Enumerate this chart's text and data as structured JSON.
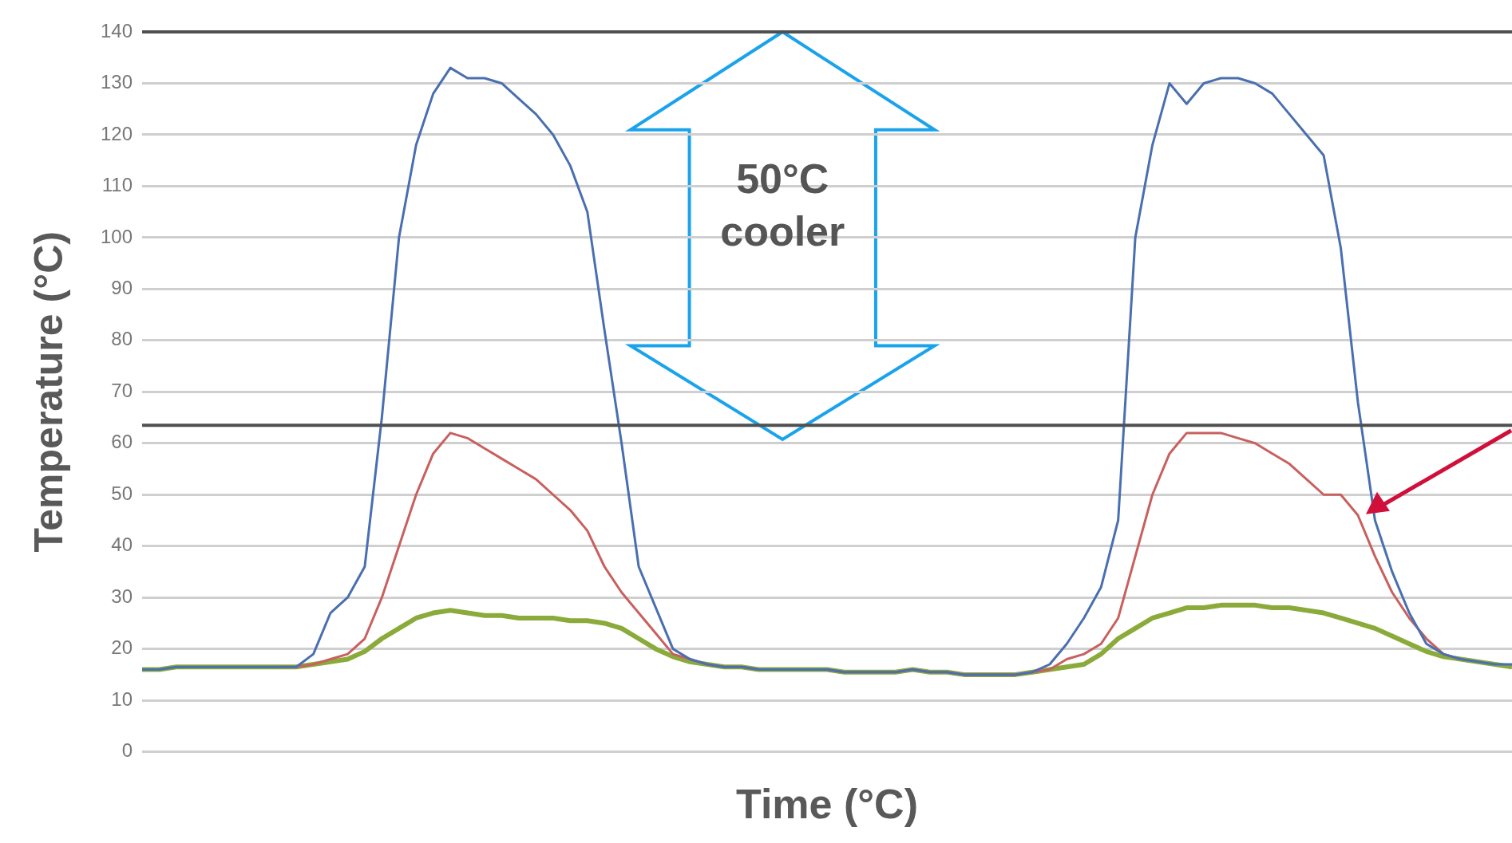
{
  "chart_data": {
    "type": "line",
    "xlabel": "Time (°C)",
    "ylabel": "Temperature (°C)",
    "categories": [
      null,
      null,
      null,
      null,
      null,
      null,
      null,
      null,
      null,
      null,
      null,
      null,
      null,
      null,
      null,
      null,
      null,
      null,
      null,
      null,
      null,
      null,
      null,
      null,
      null,
      null,
      null,
      null,
      null,
      null,
      null,
      null,
      null,
      null,
      null,
      null,
      null,
      null,
      null,
      null,
      null,
      null,
      null,
      null,
      null,
      null,
      null,
      null,
      null,
      null,
      null,
      null,
      null,
      null,
      null,
      null,
      null,
      null,
      null,
      null,
      null,
      null,
      null,
      null,
      null,
      null,
      null,
      null,
      null,
      null,
      null,
      null,
      null,
      null,
      null,
      null,
      null,
      null,
      null,
      null,
      null
    ],
    "series": [
      {
        "color": "#4a6fb0",
        "values": [
          16,
          16,
          16.5,
          16.5,
          16.5,
          16.5,
          16.5,
          16.5,
          16.5,
          16.5,
          19,
          27,
          30,
          36,
          65,
          100,
          118,
          128,
          133,
          131,
          131,
          130,
          127,
          124,
          120,
          114,
          105,
          82,
          60,
          36,
          28,
          20,
          18,
          17,
          16.5,
          16.5,
          16,
          16,
          16,
          16,
          16,
          15.5,
          15.5,
          15.5,
          15.5,
          16,
          15.5,
          15.5,
          15,
          15,
          15,
          15,
          15.5,
          17,
          21,
          26,
          32,
          45,
          100,
          118,
          130,
          126,
          130,
          131,
          131,
          130,
          128,
          124,
          120,
          116,
          98,
          68,
          45,
          35,
          27,
          21,
          19,
          18,
          17.5,
          17,
          17
        ]
      },
      {
        "color": "#c8605e",
        "values": [
          null,
          null,
          null,
          null,
          null,
          null,
          null,
          null,
          16.5,
          16.5,
          17,
          18,
          19,
          22,
          30,
          40,
          50,
          58,
          62,
          61,
          59,
          57,
          55,
          53,
          50,
          47,
          43,
          36,
          31,
          27,
          23,
          19,
          18,
          17,
          16.5,
          16.5,
          16,
          16,
          16,
          16,
          16,
          15.5,
          15.5,
          15.5,
          15.5,
          16,
          15.5,
          15.5,
          15,
          15,
          15,
          15,
          15.5,
          16,
          18,
          19,
          21,
          26,
          38,
          50,
          58,
          62,
          62,
          62,
          61,
          60,
          58,
          56,
          53,
          50,
          50,
          46,
          38,
          31,
          26,
          22,
          19,
          18,
          null,
          null,
          null
        ]
      },
      {
        "color": "#8aab3a",
        "values": [
          16,
          16,
          16.5,
          16.5,
          16.5,
          16.5,
          16.5,
          16.5,
          16.5,
          16.5,
          17,
          17.5,
          18,
          19.5,
          22,
          24,
          26,
          27,
          27.5,
          27,
          26.5,
          26.5,
          26,
          26,
          26,
          25.5,
          25.5,
          25,
          24,
          22,
          20,
          18.5,
          17.5,
          17,
          16.5,
          16.5,
          16,
          16,
          16,
          16,
          16,
          15.5,
          15.5,
          15.5,
          15.5,
          16,
          15.5,
          15.5,
          15,
          15,
          15,
          15,
          15.5,
          16,
          16.5,
          17,
          19,
          22,
          24,
          26,
          27,
          28,
          28,
          28.5,
          28.5,
          28.5,
          28,
          28,
          27.5,
          27,
          26,
          25,
          24,
          22.5,
          21,
          19.5,
          18.5,
          18,
          17.5,
          17,
          16.5
        ]
      }
    ],
    "ylim": [
      0,
      140
    ],
    "yticks": [
      0,
      10,
      20,
      30,
      40,
      50,
      60,
      70,
      80,
      90,
      100,
      110,
      120,
      130,
      140
    ],
    "grid": "y",
    "legend": false,
    "tick_labels": "y",
    "marker": "none",
    "line_style": "solid",
    "ref_lines": [
      {
        "axis": "y",
        "value": 140,
        "color": "#505050"
      },
      {
        "axis": "y",
        "value": 63.5,
        "color": "#505050"
      }
    ],
    "annotations": [
      "50°C cooler"
    ]
  }
}
